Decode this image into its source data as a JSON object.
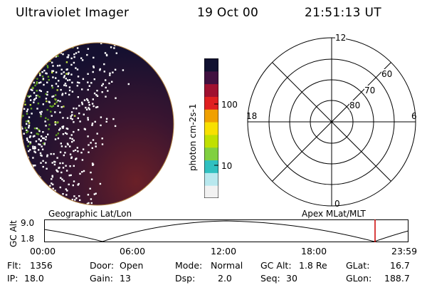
{
  "header": {
    "instrument": "Ultraviolet Imager",
    "date": "19 Oct 00",
    "time": "21:51:13 UT"
  },
  "colorbar": {
    "unit_label": "photon cm-2s-1",
    "ticks": [
      "100",
      "10"
    ],
    "colors": [
      "#f2f2f2",
      "#b8e8ee",
      "#30c0c0",
      "#80d040",
      "#c0e000",
      "#f8e000",
      "#f0a000",
      "#e02020",
      "#a01030",
      "#401040",
      "#101030"
    ]
  },
  "polar": {
    "mlt_labels": {
      "top": "12",
      "left": "18",
      "right": "6",
      "bottom": "0"
    },
    "lat_labels": [
      "60",
      "70",
      "80"
    ]
  },
  "titles": {
    "left": "Geographic Lat/Lon",
    "right": "Apex MLat/MLT"
  },
  "timeline": {
    "ylabel": "GC Alt",
    "y_ticks": [
      "9.0",
      "1.8"
    ],
    "x_ticks": [
      "00:00",
      "06:00",
      "12:00",
      "18:00",
      "23:59"
    ],
    "marker_color": "#cc0000"
  },
  "stats": {
    "flt": {
      "label": "Flt:",
      "value": "1356"
    },
    "ip": {
      "label": "IP:",
      "value": "18.0"
    },
    "door": {
      "label": "Door:",
      "value": "Open"
    },
    "gain": {
      "label": "Gain:",
      "value": "13"
    },
    "mode": {
      "label": "Mode:",
      "value": "Normal"
    },
    "dsp": {
      "label": "Dsp:",
      "value": "2.0"
    },
    "gcalt": {
      "label": "GC Alt:",
      "value": "1.8 Re"
    },
    "seq": {
      "label": "Seq:",
      "value": "30"
    },
    "glat": {
      "label": "GLat:",
      "value": "16.7"
    },
    "glon": {
      "label": "GLon:",
      "value": "188.7"
    }
  }
}
